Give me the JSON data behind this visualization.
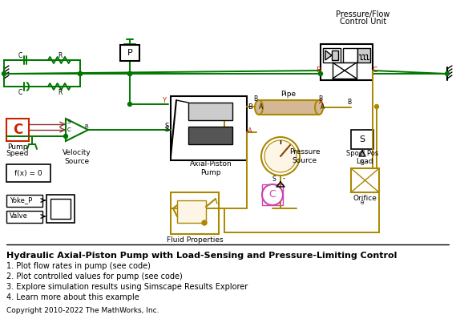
{
  "title": "Hydraulic Axial-Piston Pump with Load-Sensing and Pressure-Limiting Control",
  "bullets": [
    "1. Plot flow rates in pump (see code)",
    "2. Plot controlled values for pump (see code)",
    "3. Explore simulation results using Simscape Results Explorer",
    "4. Learn more about this example"
  ],
  "copyright": "Copyright 2010-2022 The MathWorks, Inc.",
  "bg_color": "#ffffff",
  "colors": {
    "green": "#007700",
    "red": "#cc2200",
    "gold": "#aa8800",
    "dark_gold": "#996600",
    "black": "#000000",
    "gray": "#888888",
    "light_gray": "#cccccc",
    "dark_gray": "#555555",
    "white": "#ffffff",
    "pink": "#cc44aa",
    "tan": "#d4b896"
  }
}
